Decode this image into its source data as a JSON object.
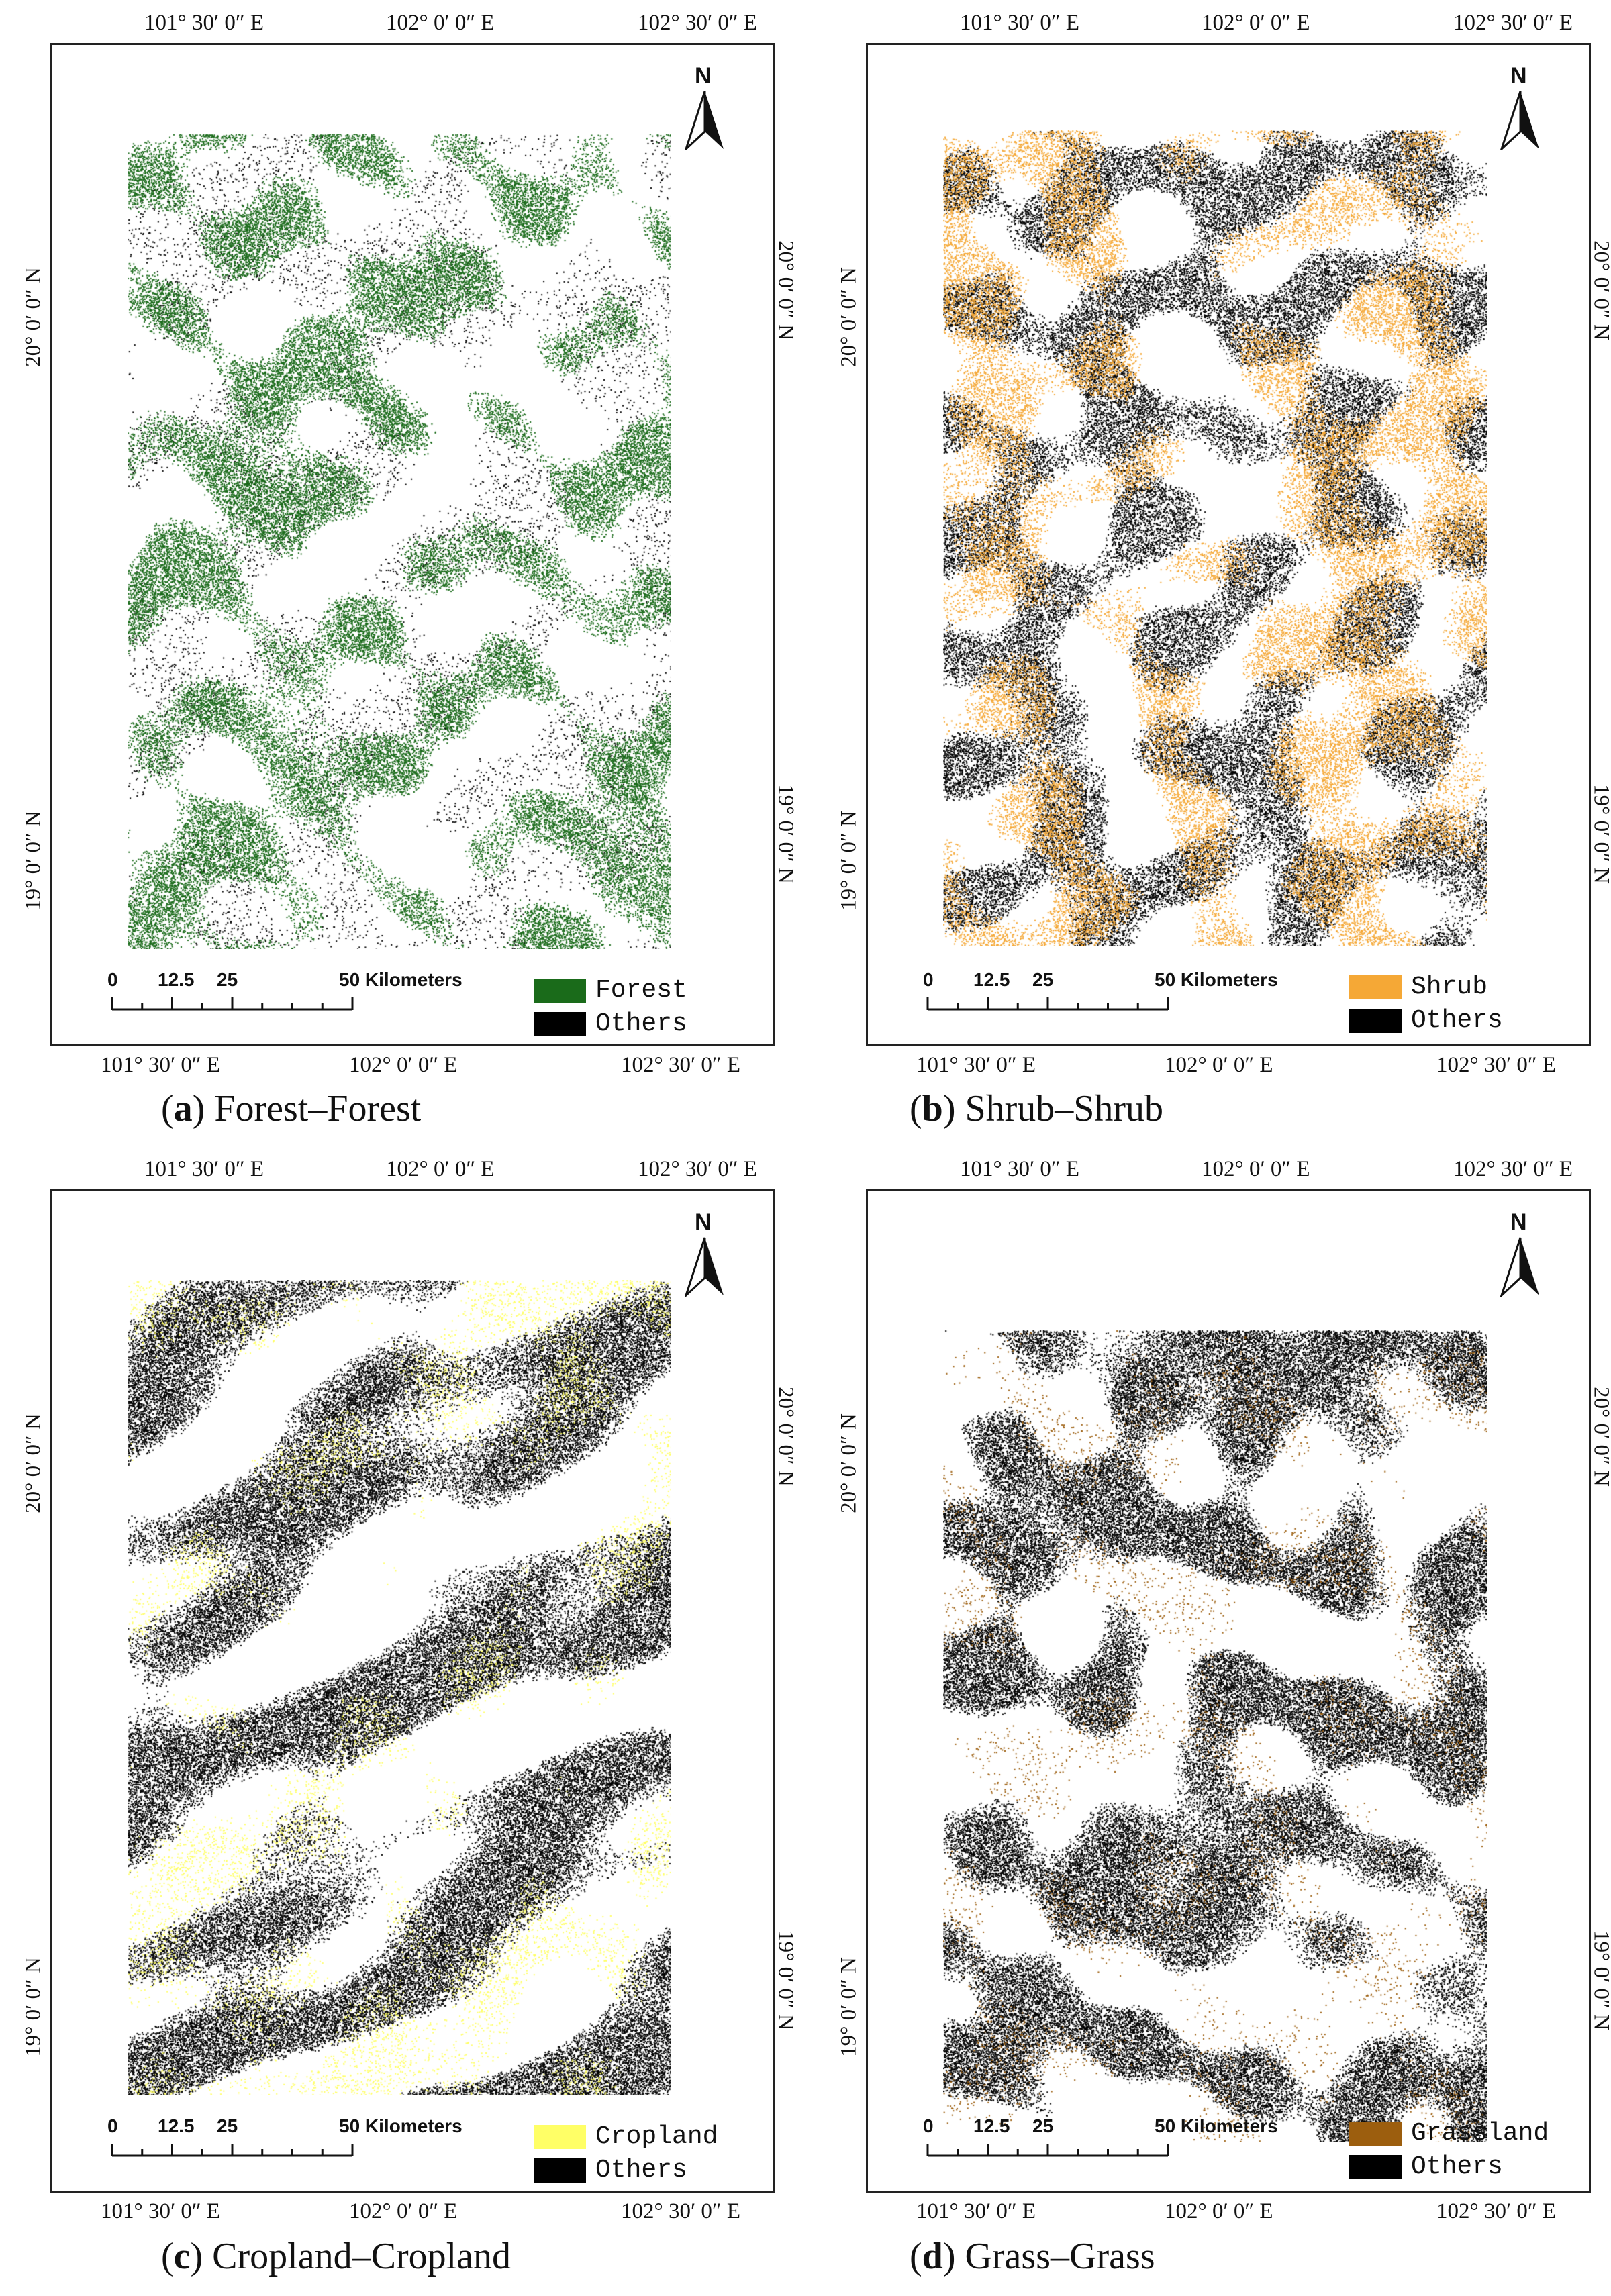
{
  "panels": [
    {
      "id": "a",
      "caption_letter": "a",
      "caption_text": "Forest–Forest",
      "class_color": "#1a6b1a",
      "legend": [
        {
          "label": "Forest",
          "color": "#1a6b1a"
        },
        {
          "label": "Others",
          "color": "#000000"
        }
      ],
      "class_density": 0.55,
      "others_density": 0.05
    },
    {
      "id": "b",
      "caption_letter": "b",
      "caption_text": "Shrub–Shrub",
      "class_color": "#f5a836",
      "legend": [
        {
          "label": "Shrub",
          "color": "#f5a836"
        },
        {
          "label": "Others",
          "color": "#000000"
        }
      ],
      "class_density": 0.35,
      "others_density": 0.4
    },
    {
      "id": "c",
      "caption_letter": "c",
      "caption_text": "Cropland–Cropland",
      "class_color": "#ffff66",
      "legend": [
        {
          "label": "Cropland",
          "color": "#ffff66"
        },
        {
          "label": "Others",
          "color": "#000000"
        }
      ],
      "class_density": 0.12,
      "others_density": 0.55
    },
    {
      "id": "d",
      "caption_letter": "d",
      "caption_text": "Grass–Grass",
      "class_color": "#9c5e0e",
      "legend": [
        {
          "label": "Grassland",
          "color": "#9c5e0e"
        },
        {
          "label": "Others",
          "color": "#000000"
        }
      ],
      "class_density": 0.05,
      "others_density": 0.55
    }
  ],
  "graticule": {
    "lon_labels": [
      "101° 30′ 0″ E",
      "102° 0′ 0″ E",
      "102° 30′ 0″ E"
    ],
    "lat_labels": [
      "20° 0′ 0″ N",
      "19° 0′ 0″ N"
    ]
  },
  "north_arrow": {
    "letter": "N"
  },
  "scale_bar": {
    "ticks": [
      "0",
      "12.5",
      "25",
      "50 Kilometers"
    ]
  }
}
